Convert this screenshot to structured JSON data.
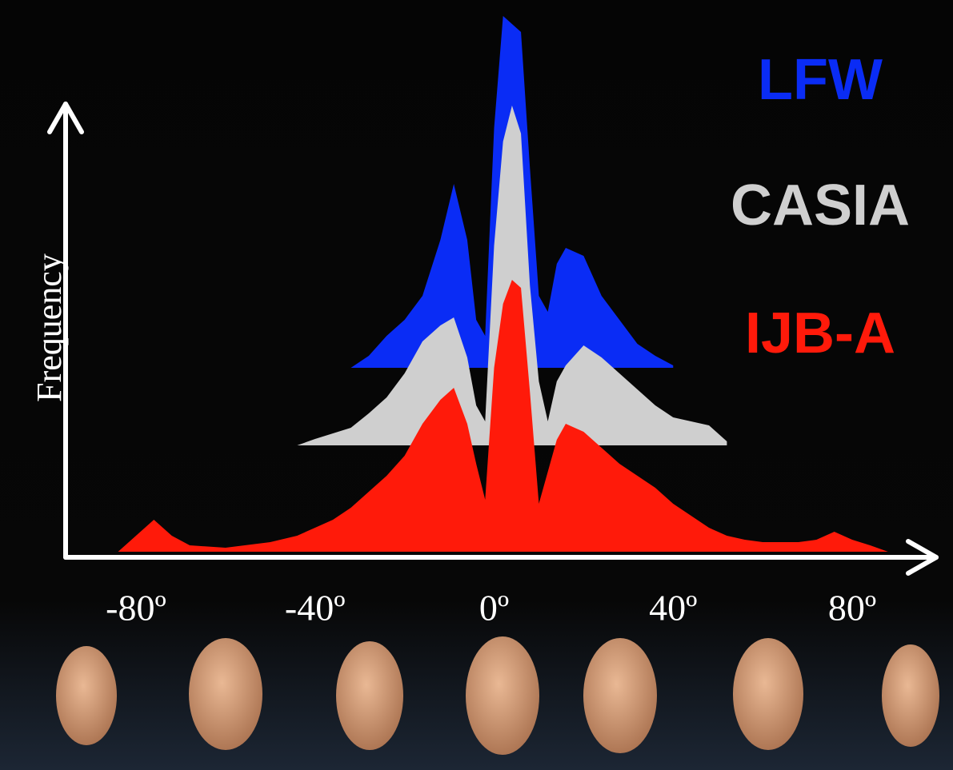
{
  "chart_data": {
    "type": "area",
    "y_label": "Frequency",
    "x": [
      -84,
      -80,
      -76,
      -72,
      -68,
      -60,
      -50,
      -44,
      -40,
      -36,
      -32,
      -28,
      -24,
      -20,
      -16,
      -12,
      -9,
      -6,
      -4,
      -2,
      0,
      2,
      4,
      6,
      8,
      10,
      12,
      14,
      16,
      20,
      24,
      28,
      32,
      36,
      40,
      48,
      52,
      56,
      60,
      68,
      72,
      76,
      80,
      84,
      88
    ],
    "xlim": [
      -90,
      90
    ],
    "xticks": [
      {
        "value": -80,
        "label": "-80º"
      },
      {
        "value": -40,
        "label": "-40º"
      },
      {
        "value": 0,
        "label": "0º"
      },
      {
        "value": 40,
        "label": "40º"
      },
      {
        "value": 80,
        "label": "80º"
      }
    ],
    "ylim": [
      0,
      500
    ],
    "grid": false,
    "series": [
      {
        "name": "LFW",
        "color": "#0a2cf5",
        "values": [
          null,
          null,
          null,
          null,
          null,
          null,
          null,
          null,
          null,
          null,
          0,
          15,
          40,
          60,
          90,
          160,
          230,
          160,
          60,
          40,
          300,
          440,
          430,
          420,
          250,
          90,
          70,
          130,
          150,
          140,
          90,
          60,
          30,
          15,
          3,
          null,
          null,
          null,
          null,
          null,
          null,
          null,
          null,
          null,
          null
        ]
      },
      {
        "name": "CASIA",
        "color": "#cfcfcf",
        "values": [
          null,
          null,
          null,
          null,
          null,
          null,
          null,
          0,
          8,
          15,
          22,
          40,
          60,
          90,
          130,
          150,
          160,
          110,
          50,
          30,
          250,
          380,
          425,
          390,
          200,
          80,
          30,
          80,
          100,
          125,
          110,
          90,
          70,
          50,
          35,
          25,
          5,
          null,
          null,
          null,
          null,
          null,
          null,
          null,
          null
        ]
      },
      {
        "name": "IJB-A",
        "color": "#ff1a0a",
        "values": [
          0,
          20,
          40,
          20,
          8,
          5,
          12,
          20,
          30,
          40,
          55,
          75,
          95,
          120,
          160,
          190,
          205,
          160,
          110,
          65,
          230,
          310,
          340,
          330,
          200,
          60,
          100,
          140,
          160,
          150,
          130,
          110,
          95,
          80,
          60,
          30,
          20,
          15,
          12,
          12,
          15,
          25,
          15,
          8,
          0
        ]
      }
    ]
  }
}
